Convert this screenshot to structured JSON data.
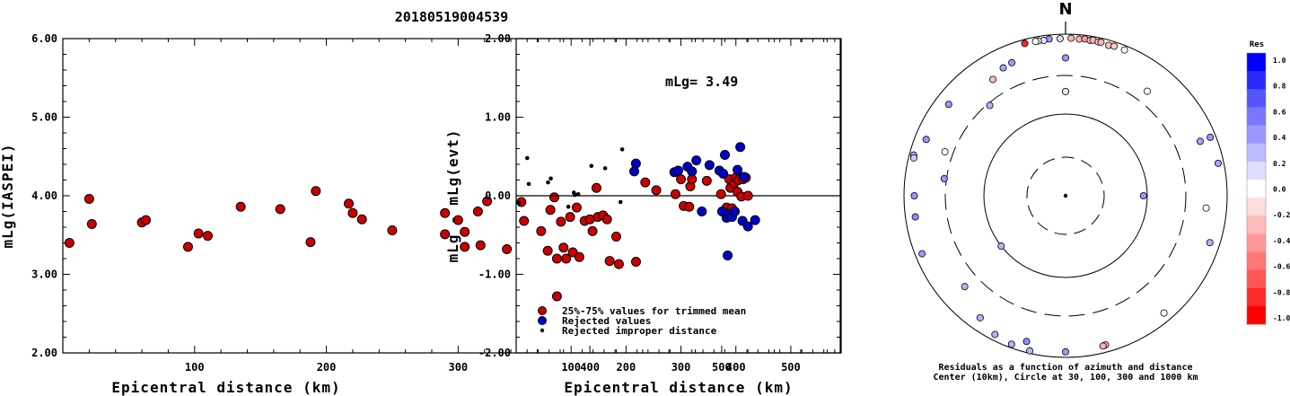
{
  "title": "20180519004539",
  "left_plot": {
    "ylabel": "mLg(IASPEI)",
    "xlabel": "Epicentral distance (km)",
    "y_ticks": [
      "6.00",
      "5.00",
      "4.00",
      "3.00",
      "2.00"
    ],
    "x_ticks": [
      "100",
      "200",
      "300",
      "400",
      "500"
    ]
  },
  "middle_plot": {
    "ylabel": "mLg - mLg(evt)",
    "xlabel": "Epicentral distance (km)",
    "y_ticks": [
      "2.00",
      "1.00",
      "0.00",
      "-1.00",
      "-2.00"
    ],
    "x_ticks": [
      "100",
      "200",
      "300",
      "400",
      "500"
    ],
    "annotation": "mLg= 3.49",
    "legend": [
      {
        "label": "25%-75% values for trimmed mean",
        "color": "#cc0000"
      },
      {
        "label": "Rejected values",
        "color": "#0000cc"
      },
      {
        "label": "Rejected improper distance",
        "color": "#000000"
      }
    ]
  },
  "polar_plot": {
    "north_label": "N",
    "caption_line1": "Residuals as a function of azimuth and distance",
    "caption_line2": "Center (10km), Circle at 30, 100, 300 and 1000 km"
  },
  "colorbar": {
    "title": "Res",
    "labels": [
      "1.0",
      "0.8",
      "0.6",
      "0.4",
      "0.2",
      "0.0",
      "-0.2",
      "-0.4",
      "-0.6",
      "-0.8",
      "-1.0"
    ],
    "colors_top_to_bottom": [
      "#0000ff",
      "#2a2aff",
      "#5555ff",
      "#7777ff",
      "#9999ff",
      "#bbbbff",
      "#ddddff",
      "#ffffff",
      "#ffdddd",
      "#ffbbbb",
      "#ff9999",
      "#ff7777",
      "#ff5555",
      "#ff2a2a",
      "#ff0000"
    ]
  },
  "chart_data": [
    {
      "type": "scatter",
      "ylabel": "mLg(IASPEI)",
      "xlabel": "Epicentral distance (km)",
      "xlim": [
        0,
        590
      ],
      "ylim": [
        2.0,
        6.0
      ],
      "series": [
        {
          "color": "#cc0000",
          "points": [
            [
              5,
              3.4
            ],
            [
              20,
              3.96
            ],
            [
              22,
              3.64
            ],
            [
              60,
              3.66
            ],
            [
              63,
              3.69
            ],
            [
              95,
              3.35
            ],
            [
              103,
              3.52
            ],
            [
              110,
              3.49
            ],
            [
              135,
              3.86
            ],
            [
              165,
              3.83
            ],
            [
              188,
              3.41
            ],
            [
              192,
              4.06
            ],
            [
              217,
              3.9
            ],
            [
              220,
              3.78
            ],
            [
              227,
              3.7
            ],
            [
              250,
              3.56
            ],
            [
              290,
              3.78
            ],
            [
              290,
              3.51
            ],
            [
              300,
              3.69
            ],
            [
              305,
              3.54
            ],
            [
              305,
              3.35
            ],
            [
              315,
              3.8
            ],
            [
              317,
              3.37
            ],
            [
              322,
              3.93
            ],
            [
              337,
              3.32
            ],
            [
              348,
              3.92
            ],
            [
              350,
              3.68
            ],
            [
              363,
              3.55
            ],
            [
              368,
              3.3
            ],
            [
              370,
              3.82
            ],
            [
              373,
              3.98
            ],
            [
              375,
              3.2
            ],
            [
              375,
              2.72
            ],
            [
              378,
              3.67
            ],
            [
              380,
              3.34
            ],
            [
              382,
              3.2
            ],
            [
              385,
              3.73
            ],
            [
              387,
              3.28
            ],
            [
              390,
              3.85
            ],
            [
              392,
              3.22
            ],
            [
              396,
              3.68
            ],
            [
              400,
              3.7
            ],
            [
              402,
              3.55
            ],
            [
              405,
              4.1
            ],
            [
              406,
              3.73
            ],
            [
              410,
              3.75
            ],
            [
              413,
              3.7
            ],
            [
              415,
              3.17
            ],
            [
              420,
              3.48
            ],
            [
              422,
              3.13
            ],
            [
              435,
              3.16
            ]
          ]
        }
      ]
    },
    {
      "type": "scatter",
      "ylabel": "mLg - mLg(evt)",
      "xlabel": "Epicentral distance (km)",
      "xlim": [
        0,
        590
      ],
      "ylim": [
        -2.0,
        2.0
      ],
      "series": [
        {
          "name": "25%-75% values for trimmed mean",
          "color": "#cc0000",
          "points": [
            [
              235,
              0.17
            ],
            [
              255,
              0.07
            ],
            [
              290,
              0.02
            ],
            [
              300,
              0.21
            ],
            [
              305,
              -0.13
            ],
            [
              315,
              -0.14
            ],
            [
              317,
              0.12
            ],
            [
              320,
              0.21
            ],
            [
              347,
              0.19
            ],
            [
              373,
              0.02
            ],
            [
              383,
              -0.15
            ],
            [
              388,
              0.21
            ],
            [
              390,
              0.1
            ],
            [
              393,
              -0.16
            ],
            [
              397,
              0.16
            ],
            [
              400,
              0.23
            ],
            [
              403,
              0.05
            ],
            [
              405,
              0.2
            ],
            [
              410,
              -0.01
            ],
            [
              413,
              0.21
            ],
            [
              418,
              0.23
            ],
            [
              422,
              0.0
            ]
          ]
        },
        {
          "name": "Rejected values",
          "color": "#0000cc",
          "points": [
            [
              215,
              0.31
            ],
            [
              218,
              0.41
            ],
            [
              288,
              0.3
            ],
            [
              295,
              0.32
            ],
            [
              312,
              0.37
            ],
            [
              320,
              0.31
            ],
            [
              328,
              0.45
            ],
            [
              338,
              -0.2
            ],
            [
              352,
              0.39
            ],
            [
              370,
              0.32
            ],
            [
              375,
              -0.2
            ],
            [
              377,
              0.28
            ],
            [
              380,
              0.52
            ],
            [
              383,
              -0.28
            ],
            [
              385,
              -0.76
            ],
            [
              388,
              -0.23
            ],
            [
              393,
              -0.27
            ],
            [
              398,
              -0.2
            ],
            [
              403,
              0.33
            ],
            [
              408,
              0.62
            ],
            [
              412,
              -0.32
            ],
            [
              415,
              0.24
            ],
            [
              422,
              -0.39
            ],
            [
              435,
              -0.31
            ]
          ]
        },
        {
          "name": "Rejected improper distance",
          "color": "#000000",
          "points": [
            [
              5,
              -0.09
            ],
            [
              20,
              0.48
            ],
            [
              23,
              0.15
            ],
            [
              58,
              0.17
            ],
            [
              63,
              0.22
            ],
            [
              95,
              -0.14
            ],
            [
              105,
              0.04
            ],
            [
              107,
              0.01
            ],
            [
              113,
              0.02
            ],
            [
              137,
              0.38
            ],
            [
              162,
              0.35
            ],
            [
              190,
              -0.08
            ],
            [
              193,
              0.59
            ]
          ]
        }
      ]
    }
  ],
  "polar_points": [
    {
      "az": 358,
      "d": 880,
      "res": 0.15
    },
    {
      "az": 2,
      "d": 890,
      "res": -0.3
    },
    {
      "az": 5,
      "d": 880,
      "res": -0.3
    },
    {
      "az": 7,
      "d": 900,
      "res": -0.4
    },
    {
      "az": 9,
      "d": 880,
      "res": -0.25
    },
    {
      "az": 10,
      "d": 900,
      "res": -0.3
    },
    {
      "az": 12,
      "d": 880,
      "res": -0.2
    },
    {
      "az": 13,
      "d": 890,
      "res": -0.3
    },
    {
      "az": 16,
      "d": 860,
      "res": -0.25
    },
    {
      "az": 18,
      "d": 880,
      "res": -0.2
    },
    {
      "az": 22,
      "d": 880,
      "res": 0.0
    },
    {
      "az": 354,
      "d": 890,
      "res": 0.4
    },
    {
      "az": 352,
      "d": 870,
      "res": 0.1
    },
    {
      "az": 350,
      "d": 880,
      "res": 0.1
    },
    {
      "az": 349,
      "d": 880,
      "res": 0.0
    },
    {
      "az": 345,
      "d": 890,
      "res": -0.85
    },
    {
      "az": 338,
      "d": 590,
      "res": 0.4
    },
    {
      "az": 334,
      "d": 570,
      "res": 0.35
    },
    {
      "az": 328,
      "d": 490,
      "res": -0.25
    },
    {
      "az": 0,
      "d": 500,
      "res": 0.4
    },
    {
      "az": 0,
      "d": 190,
      "res": -0.1
    },
    {
      "az": 38,
      "d": 430,
      "res": 0.0
    },
    {
      "az": 308,
      "d": 680,
      "res": 0.4
    },
    {
      "az": 292,
      "d": 720,
      "res": 0.4
    },
    {
      "az": 285,
      "d": 880,
      "res": 0.35
    },
    {
      "az": 284,
      "d": 860,
      "res": 0.2
    },
    {
      "az": 270,
      "d": 740,
      "res": 0.4
    },
    {
      "az": 262,
      "d": 750,
      "res": 0.45
    },
    {
      "az": 290,
      "d": 380,
      "res": 0.0
    },
    {
      "az": 278,
      "d": 320,
      "res": 0.4
    },
    {
      "az": 320,
      "d": 280,
      "res": 0.3
    },
    {
      "az": 95,
      "d": 550,
      "res": 0.0
    },
    {
      "az": 90,
      "d": 90,
      "res": 0.4
    },
    {
      "az": 68,
      "d": 620,
      "res": 0.35
    },
    {
      "az": 68,
      "d": 850,
      "res": 0.4
    },
    {
      "az": 78,
      "d": 850,
      "res": 0.35
    },
    {
      "az": 108,
      "d": 750,
      "res": 0.3
    },
    {
      "az": 248,
      "d": 820,
      "res": 0.4
    },
    {
      "az": 228,
      "d": 470,
      "res": 0.3
    },
    {
      "az": 215,
      "d": 690,
      "res": 0.3
    },
    {
      "az": 207,
      "d": 840,
      "res": 0.3
    },
    {
      "az": 200,
      "d": 900,
      "res": 0.3
    },
    {
      "az": 193,
      "d": 930,
      "res": 0.3
    },
    {
      "az": 180,
      "d": 850,
      "res": 0.4
    },
    {
      "az": 165,
      "d": 810,
      "res": -0.35
    },
    {
      "az": 166,
      "d": 820,
      "res": -0.3
    },
    {
      "az": 140,
      "d": 780,
      "res": 0.0
    },
    {
      "az": 195,
      "d": 730,
      "res": 0.45
    },
    {
      "az": 232,
      "d": 100,
      "res": 0.3
    }
  ]
}
